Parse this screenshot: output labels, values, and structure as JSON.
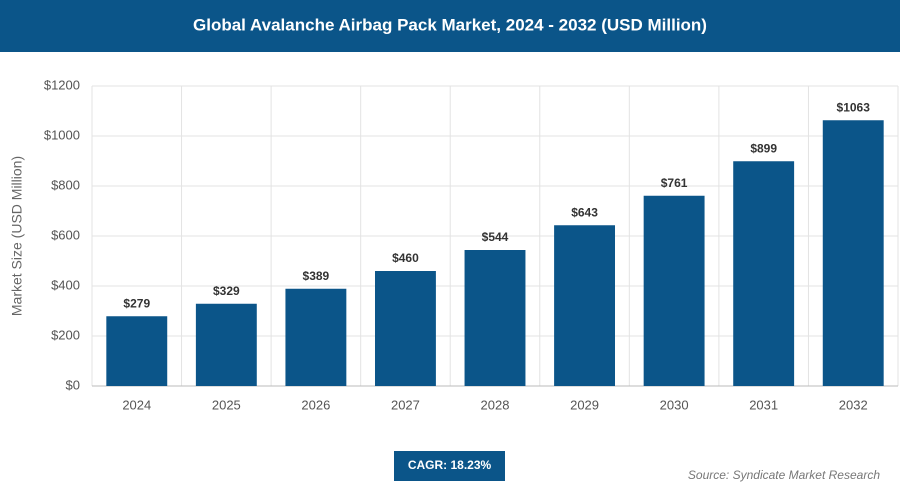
{
  "chart_data": {
    "type": "bar",
    "title": "Global Avalanche Airbag Pack Market, 2024 - 2032 (USD Million)",
    "y_label": "Market Size (USD Million)",
    "categories": [
      "2024",
      "2025",
      "2026",
      "2027",
      "2028",
      "2029",
      "2030",
      "2031",
      "2032"
    ],
    "values": [
      279,
      329,
      389,
      460,
      544,
      643,
      761,
      899,
      1063
    ],
    "value_labels": [
      "$279",
      "$329",
      "$389",
      "$460",
      "$544",
      "$643",
      "$761",
      "$899",
      "$1063"
    ],
    "color": "#0b5589",
    "ylim": [
      0,
      1200
    ],
    "yticks": [
      {
        "value": 0,
        "label": "$0"
      },
      {
        "value": 200,
        "label": "$200"
      },
      {
        "value": 400,
        "label": "$400"
      },
      {
        "value": 600,
        "label": "$600"
      },
      {
        "value": 800,
        "label": "$800"
      },
      {
        "value": 1000,
        "label": "$1000"
      },
      {
        "value": 1200,
        "label": "$1200"
      }
    ],
    "grid": true,
    "cagr": "CAGR: 18.23%",
    "source": "Source: Syndicate Market Research"
  }
}
